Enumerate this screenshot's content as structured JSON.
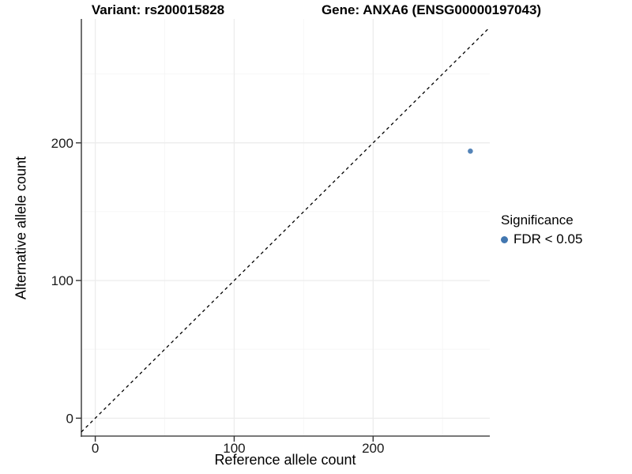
{
  "chart_data": {
    "type": "scatter",
    "title_variant": "Variant: rs200015828",
    "title_gene": "Gene: ANXA6 (ENSG00000197043)",
    "xlabel": "Reference allele count",
    "ylabel": "Alternative allele count",
    "xlim": [
      -10,
      284
    ],
    "ylim": [
      -13,
      290
    ],
    "x_ticks": [
      0,
      100,
      200
    ],
    "y_ticks": [
      0,
      100,
      200
    ],
    "x_minor_ticks": [
      50,
      150,
      250
    ],
    "y_minor_ticks": [
      50,
      150,
      250
    ],
    "grid": "major+minor",
    "identity_line": {
      "slope": 1,
      "intercept": 0,
      "style": "dashed",
      "color": "#000000"
    },
    "points": [
      {
        "x": 270,
        "y": 194,
        "series": "FDR < 0.05"
      }
    ],
    "legend": {
      "position": "right",
      "title": "Significance",
      "entries": [
        {
          "label": "FDR < 0.05",
          "marker": "circle",
          "color": "#4277b0"
        }
      ]
    }
  },
  "colors": {
    "point": "#4277b0",
    "grid_major": "#ececec",
    "grid_minor": "#f6f6f6",
    "axis_line": "#4d4d4d",
    "tick_mark": "#333333",
    "tick_label": "#1a1a1a",
    "identity_line": "#000000",
    "title_text": "#000000",
    "background": "#ffffff"
  }
}
